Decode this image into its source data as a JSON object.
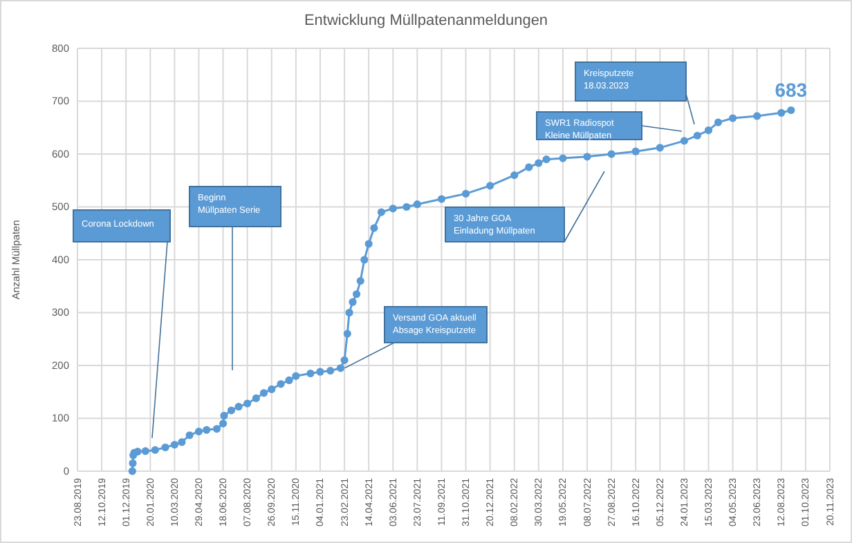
{
  "chart_data": {
    "type": "line",
    "title": "Entwicklung Müllpatenanmeldungen",
    "ylabel": "Anzahl Müllpaten",
    "xlim": [
      "2019-08-23",
      "2023-11-20"
    ],
    "xticks": [
      {
        "value": "2019-08-23",
        "label": "23.08.2019"
      },
      {
        "value": "2019-10-12",
        "label": "12.10.2019"
      },
      {
        "value": "2019-12-01",
        "label": "01.12.2019"
      },
      {
        "value": "2020-01-20",
        "label": "20.01.2020"
      },
      {
        "value": "2020-03-10",
        "label": "10.03.2020"
      },
      {
        "value": "2020-04-29",
        "label": "29.04.2020"
      },
      {
        "value": "2020-06-18",
        "label": "18.06.2020"
      },
      {
        "value": "2020-08-07",
        "label": "07.08.2020"
      },
      {
        "value": "2020-09-26",
        "label": "26.09.2020"
      },
      {
        "value": "2020-11-15",
        "label": "15.11.2020"
      },
      {
        "value": "2021-01-04",
        "label": "04.01.2021"
      },
      {
        "value": "2021-02-23",
        "label": "23.02.2021"
      },
      {
        "value": "2021-04-14",
        "label": "14.04.2021"
      },
      {
        "value": "2021-06-03",
        "label": "03.06.2021"
      },
      {
        "value": "2021-07-23",
        "label": "23.07.2021"
      },
      {
        "value": "2021-09-11",
        "label": "11.09.2021"
      },
      {
        "value": "2021-10-31",
        "label": "31.10.2021"
      },
      {
        "value": "2021-12-20",
        "label": "20.12.2021"
      },
      {
        "value": "2022-02-08",
        "label": "08.02.2022"
      },
      {
        "value": "2022-03-30",
        "label": "30.03.2022"
      },
      {
        "value": "2022-05-19",
        "label": "19.05.2022"
      },
      {
        "value": "2022-07-08",
        "label": "08.07.2022"
      },
      {
        "value": "2022-08-27",
        "label": "27.08.2022"
      },
      {
        "value": "2022-10-16",
        "label": "16.10.2022"
      },
      {
        "value": "2022-12-05",
        "label": "05.12.2022"
      },
      {
        "value": "2023-01-24",
        "label": "24.01.2023"
      },
      {
        "value": "2023-03-15",
        "label": "15.03.2023"
      },
      {
        "value": "2023-05-04",
        "label": "04.05.2023"
      },
      {
        "value": "2023-06-23",
        "label": "23.06.2023"
      },
      {
        "value": "2023-08-12",
        "label": "12.08.2023"
      },
      {
        "value": "2023-10-01",
        "label": "01.10.2023"
      },
      {
        "value": "2023-11-20",
        "label": "20.11.2023"
      }
    ],
    "ylim": [
      0,
      800
    ],
    "yticks": [
      0,
      100,
      200,
      300,
      400,
      500,
      600,
      700,
      800
    ],
    "grid": true,
    "marker": "circle",
    "line_style": "solid",
    "series": [
      {
        "color": "#5b9bd5",
        "x": [
          "2019-12-14",
          "2019-12-15",
          "2019-12-16",
          "2019-12-18",
          "2019-12-25",
          "2020-01-10",
          "2020-01-30",
          "2020-02-20",
          "2020-03-10",
          "2020-03-25",
          "2020-04-10",
          "2020-04-29",
          "2020-05-15",
          "2020-06-05",
          "2020-06-18",
          "2020-06-20",
          "2020-07-05",
          "2020-07-20",
          "2020-08-07",
          "2020-08-25",
          "2020-09-10",
          "2020-09-26",
          "2020-10-15",
          "2020-11-01",
          "2020-11-15",
          "2020-12-15",
          "2021-01-04",
          "2021-01-25",
          "2021-02-15",
          "2021-02-23",
          "2021-03-01",
          "2021-03-05",
          "2021-03-12",
          "2021-03-20",
          "2021-03-28",
          "2021-04-05",
          "2021-04-14",
          "2021-04-25",
          "2021-05-10",
          "2021-06-03",
          "2021-07-01",
          "2021-07-23",
          "2021-09-11",
          "2021-10-31",
          "2021-12-20",
          "2022-02-08",
          "2022-03-10",
          "2022-03-30",
          "2022-04-15",
          "2022-05-19",
          "2022-07-08",
          "2022-08-27",
          "2022-10-16",
          "2022-12-05",
          "2023-01-24",
          "2023-02-20",
          "2023-03-15",
          "2023-04-04",
          "2023-05-04",
          "2023-06-23",
          "2023-08-12",
          "2023-09-01"
        ],
        "values": [
          0,
          15,
          30,
          35,
          37,
          38,
          40,
          45,
          50,
          55,
          68,
          75,
          78,
          80,
          90,
          105,
          115,
          122,
          128,
          138,
          148,
          155,
          165,
          172,
          180,
          185,
          188,
          190,
          195,
          210,
          260,
          300,
          320,
          335,
          360,
          400,
          430,
          460,
          490,
          497,
          500,
          505,
          515,
          525,
          540,
          560,
          575,
          583,
          590,
          592,
          595,
          600,
          605,
          612,
          625,
          635,
          645,
          660,
          668,
          672,
          678,
          683
        ]
      }
    ],
    "annotations": [
      "Corona Lockdown",
      "Beginn\nMüllpaten Serie",
      {
        "text": "Versand GOA aktuell\nAbsage Kreisputzete",
        "x": "2021-02-15",
        "y": 195
      },
      "30 Jahre GOA\nEinladung Müllpaten",
      "SWR1 Radiospot\nKleine Müllpaten",
      "Kreisputzete\n18.03.2023",
      {
        "text": "683",
        "x": "2023-09-01",
        "y": 683
      }
    ]
  }
}
